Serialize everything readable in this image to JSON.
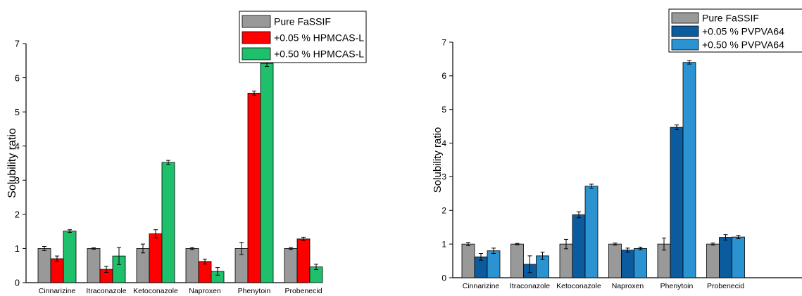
{
  "chart_data": [
    {
      "type": "bar",
      "ylabel": "Solubility ratio",
      "xlabel": "",
      "ylim": [
        0,
        7
      ],
      "yticks": [
        0,
        1,
        2,
        3,
        4,
        5,
        6,
        7
      ],
      "categories": [
        "Cinnarizine",
        "Itraconazole",
        "Ketoconazole",
        "Naproxen",
        "Phenytoin",
        "Probenecid"
      ],
      "legend_position": "top-right",
      "series": [
        {
          "name": "Pure FaSSIF",
          "color": "#999999",
          "values": [
            1.0,
            1.0,
            1.0,
            1.0,
            1.0,
            1.0
          ],
          "errors": [
            0.06,
            0.02,
            0.13,
            0.03,
            0.18,
            0.03
          ]
        },
        {
          "name": "+0.05 % HPMCAS-L",
          "color": "#ff0000",
          "values": [
            0.7,
            0.39,
            1.43,
            0.62,
            5.55,
            1.28
          ],
          "errors": [
            0.08,
            0.09,
            0.12,
            0.07,
            0.06,
            0.05
          ]
        },
        {
          "name": "+0.50 % HPMCAS-L",
          "color": "#1fc06b",
          "values": [
            1.51,
            0.78,
            3.52,
            0.33,
            6.42,
            0.46
          ],
          "errors": [
            0.04,
            0.25,
            0.06,
            0.11,
            0.09,
            0.08
          ]
        }
      ]
    },
    {
      "type": "bar",
      "ylabel": "Solubility ratio",
      "xlabel": "",
      "ylim": [
        0,
        7
      ],
      "yticks": [
        0,
        1,
        2,
        3,
        4,
        5,
        6,
        7
      ],
      "categories": [
        "Cinnarizine",
        "Itraconazole",
        "Ketoconazole",
        "Naproxen",
        "Phenytoin",
        "Probenecid"
      ],
      "legend_position": "top-right",
      "series": [
        {
          "name": "Pure FaSSIF",
          "color": "#999999",
          "values": [
            1.0,
            1.0,
            1.0,
            1.0,
            1.0,
            1.0
          ],
          "errors": [
            0.05,
            0.02,
            0.14,
            0.03,
            0.18,
            0.03
          ]
        },
        {
          "name": "+0.05 % PVPVA64",
          "color": "#0b5c9e",
          "values": [
            0.62,
            0.4,
            1.87,
            0.82,
            4.47,
            1.2
          ],
          "errors": [
            0.1,
            0.25,
            0.09,
            0.06,
            0.07,
            0.08
          ]
        },
        {
          "name": "+0.50 % PVPVA64",
          "color": "#2b93d1",
          "values": [
            0.8,
            0.65,
            2.72,
            0.87,
            6.4,
            1.21
          ],
          "errors": [
            0.08,
            0.11,
            0.06,
            0.04,
            0.05,
            0.05
          ]
        }
      ]
    }
  ]
}
